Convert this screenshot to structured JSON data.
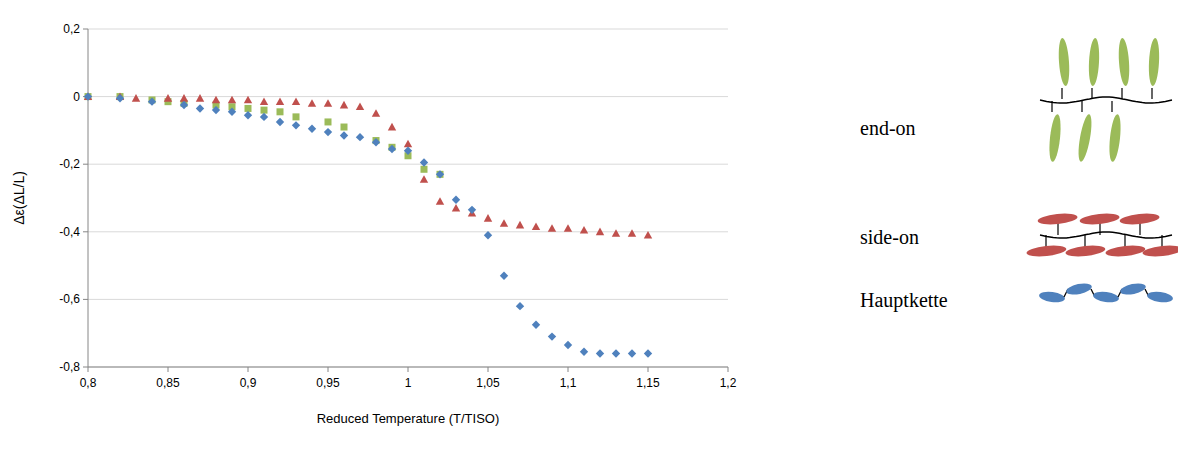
{
  "chart_data": {
    "type": "scatter",
    "x_label": "Reduced Temperature (T/TISO)",
    "y_label": "Δε(ΔL/L)",
    "xlim": [
      0.8,
      1.2
    ],
    "ylim": [
      -0.8,
      0.2
    ],
    "xticks": [
      {
        "value": 0.8,
        "label": "0,8"
      },
      {
        "value": 0.85,
        "label": "0,85"
      },
      {
        "value": 0.9,
        "label": "0,9"
      },
      {
        "value": 0.95,
        "label": "0,95"
      },
      {
        "value": 1,
        "label": "1"
      },
      {
        "value": 1.05,
        "label": "1,05"
      },
      {
        "value": 1.1,
        "label": "1,1"
      },
      {
        "value": 1.15,
        "label": "1,15"
      },
      {
        "value": 1.2,
        "label": "1,2"
      }
    ],
    "yticks": [
      {
        "value": -0.8,
        "label": "-0,8"
      },
      {
        "value": -0.6,
        "label": "-0,6"
      },
      {
        "value": -0.4,
        "label": "-0,4"
      },
      {
        "value": -0.2,
        "label": "-0,2"
      },
      0,
      {
        "value": 0.2,
        "label": "0,2"
      }
    ],
    "grid": true,
    "legend": "right",
    "series": [
      {
        "name": "end-on",
        "color": "#9bbb59",
        "marker": "square",
        "x": [
          0.8,
          0.82,
          0.84,
          0.85,
          0.86,
          0.88,
          0.89,
          0.9,
          0.91,
          0.92,
          0.93,
          0.95,
          0.96,
          0.98,
          0.99,
          1.0,
          1.01,
          1.02
        ],
        "values": [
          0,
          0,
          -0.01,
          -0.015,
          -0.02,
          -0.025,
          -0.03,
          -0.035,
          -0.04,
          -0.045,
          -0.06,
          -0.075,
          -0.09,
          -0.13,
          -0.15,
          -0.175,
          -0.215,
          -0.23
        ]
      },
      {
        "name": "side-on",
        "color": "#c0504d",
        "marker": "triangle",
        "x": [
          0.8,
          0.82,
          0.83,
          0.85,
          0.86,
          0.87,
          0.88,
          0.89,
          0.9,
          0.91,
          0.92,
          0.93,
          0.94,
          0.95,
          0.96,
          0.97,
          0.98,
          0.99,
          1.0,
          1.01,
          1.02,
          1.03,
          1.04,
          1.05,
          1.06,
          1.07,
          1.08,
          1.09,
          1.1,
          1.11,
          1.12,
          1.13,
          1.14,
          1.15
        ],
        "values": [
          0,
          0,
          -0.005,
          -0.005,
          -0.005,
          -0.005,
          -0.01,
          -0.01,
          -0.01,
          -0.015,
          -0.015,
          -0.015,
          -0.02,
          -0.02,
          -0.025,
          -0.03,
          -0.05,
          -0.09,
          -0.14,
          -0.245,
          -0.31,
          -0.33,
          -0.345,
          -0.36,
          -0.375,
          -0.38,
          -0.385,
          -0.39,
          -0.39,
          -0.395,
          -0.4,
          -0.405,
          -0.405,
          -0.41
        ]
      },
      {
        "name": "Hauptkette",
        "color": "#4f81bd",
        "marker": "diamond",
        "x": [
          0.8,
          0.82,
          0.84,
          0.86,
          0.87,
          0.88,
          0.89,
          0.9,
          0.91,
          0.92,
          0.93,
          0.94,
          0.95,
          0.96,
          0.97,
          0.98,
          0.99,
          1.0,
          1.01,
          1.02,
          1.03,
          1.04,
          1.05,
          1.06,
          1.07,
          1.08,
          1.09,
          1.1,
          1.11,
          1.12,
          1.13,
          1.14,
          1.15
        ],
        "values": [
          0,
          -0.005,
          -0.015,
          -0.025,
          -0.035,
          -0.04,
          -0.045,
          -0.055,
          -0.06,
          -0.075,
          -0.085,
          -0.095,
          -0.105,
          -0.115,
          -0.12,
          -0.135,
          -0.155,
          -0.16,
          -0.195,
          -0.23,
          -0.305,
          -0.335,
          -0.41,
          -0.53,
          -0.62,
          -0.675,
          -0.71,
          -0.735,
          -0.755,
          -0.76,
          -0.76,
          -0.76,
          -0.76
        ]
      }
    ]
  }
}
